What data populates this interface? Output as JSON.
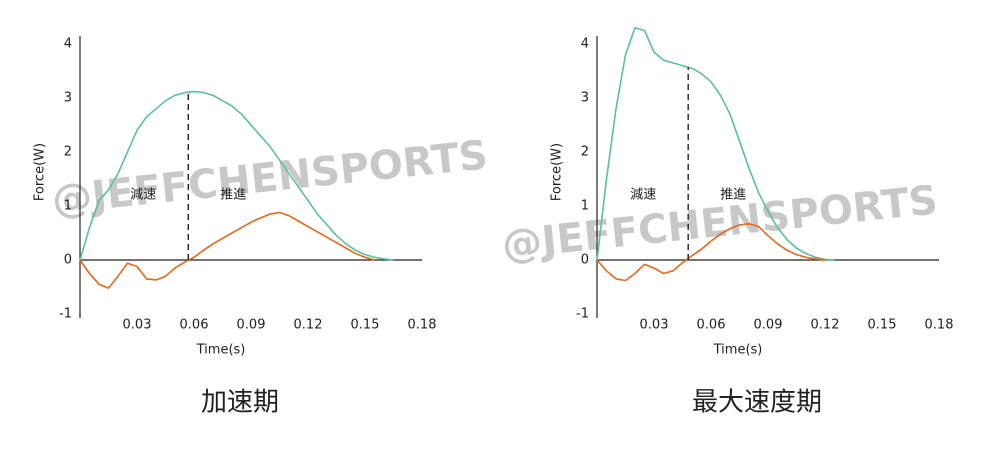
{
  "watermark": "@JEFFCHENSPORTS",
  "chart_data": [
    {
      "type": "line",
      "title": "加速期",
      "x_label": "Time(s)",
      "y_label": "Force(W)",
      "xlim": [
        0,
        0.18
      ],
      "ylim": [
        -1,
        4
      ],
      "xticks": [
        0.03,
        0.06,
        0.09,
        0.12,
        0.15,
        0.18
      ],
      "yticks": [
        -1,
        0,
        1,
        2,
        3,
        4
      ],
      "divider_x": 0.057,
      "annotations": [
        "減速",
        "推進"
      ],
      "x": [
        0,
        0.005,
        0.01,
        0.015,
        0.02,
        0.025,
        0.03,
        0.035,
        0.04,
        0.045,
        0.05,
        0.055,
        0.06,
        0.065,
        0.07,
        0.075,
        0.08,
        0.085,
        0.09,
        0.095,
        0.1,
        0.105,
        0.11,
        0.115,
        0.12,
        0.125,
        0.13,
        0.135,
        0.14,
        0.145,
        0.15,
        0.155,
        0.16,
        0.165
      ],
      "series": [
        {
          "color": "#5bbf9f",
          "values": [
            0,
            0.6,
            1.1,
            1.3,
            1.6,
            2.0,
            2.4,
            2.65,
            2.8,
            2.95,
            3.05,
            3.1,
            3.12,
            3.1,
            3.05,
            2.95,
            2.85,
            2.7,
            2.5,
            2.3,
            2.1,
            1.85,
            1.6,
            1.35,
            1.1,
            0.85,
            0.65,
            0.45,
            0.3,
            0.18,
            0.1,
            0.05,
            0.02,
            0
          ]
        },
        {
          "color": "#e2691e",
          "values": [
            0,
            -0.25,
            -0.45,
            -0.52,
            -0.3,
            -0.06,
            -0.12,
            -0.35,
            -0.37,
            -0.3,
            -0.15,
            -0.04,
            0.05,
            0.18,
            0.3,
            0.4,
            0.5,
            0.6,
            0.7,
            0.78,
            0.85,
            0.88,
            0.82,
            0.72,
            0.62,
            0.52,
            0.42,
            0.32,
            0.22,
            0.12,
            0.05,
            0,
            null,
            null
          ]
        }
      ]
    },
    {
      "type": "line",
      "title": "最大速度期",
      "x_label": "Time(s)",
      "y_label": "Force(W)",
      "xlim": [
        0,
        0.18
      ],
      "ylim": [
        -1,
        4
      ],
      "xticks": [
        0.03,
        0.06,
        0.09,
        0.12,
        0.15,
        0.18
      ],
      "yticks": [
        -1,
        0,
        1,
        2,
        3,
        4
      ],
      "divider_x": 0.048,
      "annotations": [
        "減速",
        "推進"
      ],
      "x": [
        0,
        0.005,
        0.01,
        0.015,
        0.02,
        0.025,
        0.03,
        0.035,
        0.04,
        0.045,
        0.05,
        0.055,
        0.06,
        0.065,
        0.07,
        0.075,
        0.08,
        0.085,
        0.09,
        0.095,
        0.1,
        0.105,
        0.11,
        0.115,
        0.12,
        0.125
      ],
      "series": [
        {
          "color": "#5bbf9f",
          "values": [
            0,
            1.5,
            2.8,
            3.8,
            4.3,
            4.25,
            3.85,
            3.7,
            3.65,
            3.6,
            3.55,
            3.45,
            3.3,
            3.05,
            2.7,
            2.2,
            1.7,
            1.25,
            0.9,
            0.6,
            0.38,
            0.22,
            0.12,
            0.05,
            0.01,
            0
          ]
        },
        {
          "color": "#e2691e",
          "values": [
            0,
            -0.2,
            -0.35,
            -0.38,
            -0.25,
            -0.08,
            -0.15,
            -0.25,
            -0.2,
            -0.05,
            0.08,
            0.2,
            0.35,
            0.48,
            0.58,
            0.65,
            0.67,
            0.62,
            0.45,
            0.3,
            0.18,
            0.1,
            0.05,
            0.02,
            0,
            null
          ]
        }
      ]
    }
  ]
}
